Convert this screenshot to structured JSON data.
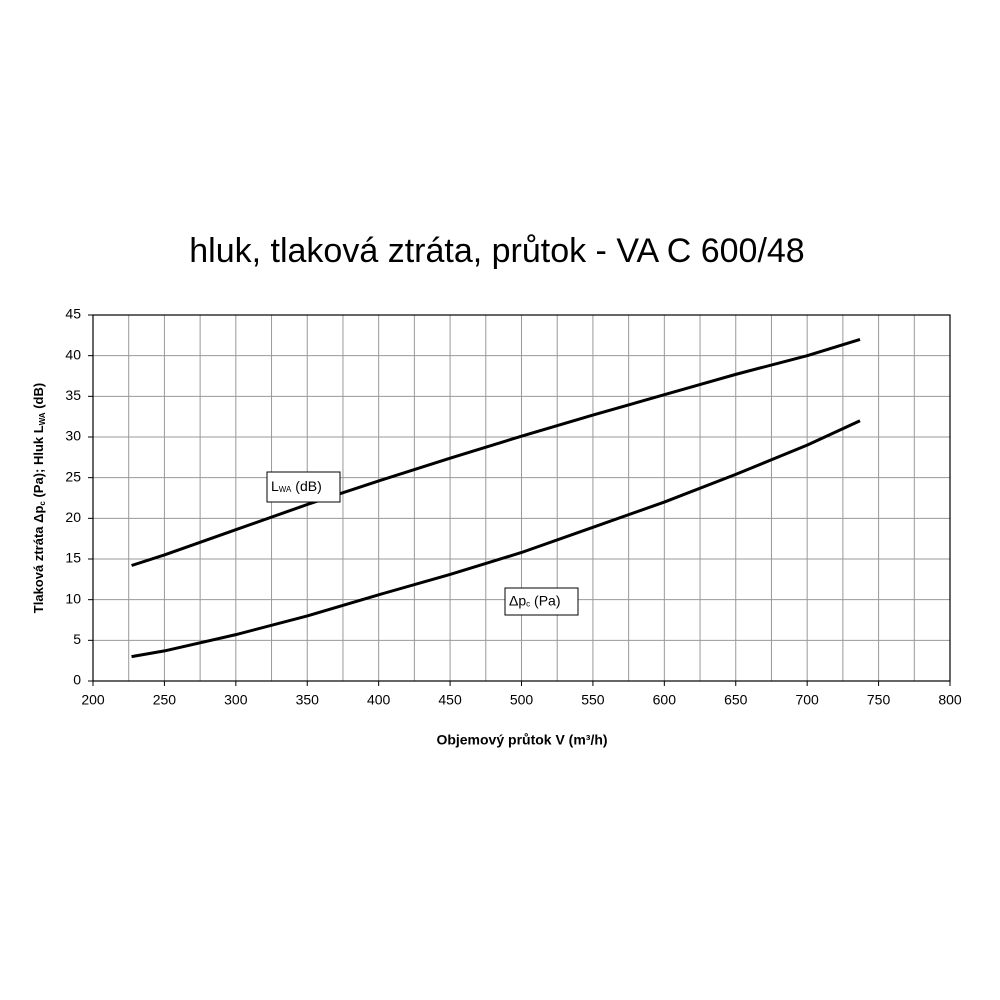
{
  "chart_data": {
    "type": "line",
    "title": "hluk, tlaková ztráta, průtok - VA C 600/48",
    "x_label": "Objemový  průtok V (m³/h)",
    "y_label_parts": [
      "Tlaková ztráta Δp",
      "c",
      " (Pa); Hluk L",
      "WA",
      " (dB)"
    ],
    "xlim": [
      200,
      800
    ],
    "xticks": [
      200,
      250,
      300,
      350,
      400,
      450,
      500,
      550,
      600,
      650,
      700,
      750,
      800
    ],
    "x_minor_grid": [
      225,
      275,
      325,
      375,
      425,
      475,
      525,
      575,
      625,
      675,
      725,
      775
    ],
    "ylim": [
      0,
      45
    ],
    "yticks": [
      0,
      5,
      10,
      15,
      20,
      25,
      30,
      35,
      40,
      45
    ],
    "grid": true,
    "series": [
      {
        "name_parts": [
          "L",
          "WA",
          " (dB)"
        ],
        "color": "#000000",
        "x": [
          227,
          250,
          300,
          350,
          400,
          450,
          500,
          550,
          600,
          650,
          700,
          737
        ],
        "values": [
          14.2,
          15.5,
          18.6,
          21.7,
          24.6,
          27.4,
          30.1,
          32.7,
          35.2,
          37.7,
          40.0,
          42.0
        ]
      },
      {
        "name_parts": [
          "Δp",
          "c",
          " (Pa)"
        ],
        "color": "#000000",
        "x": [
          227,
          250,
          300,
          350,
          400,
          450,
          500,
          550,
          600,
          650,
          700,
          737
        ],
        "values": [
          3.0,
          3.7,
          5.7,
          8.0,
          10.6,
          13.1,
          15.8,
          18.9,
          22.0,
          25.4,
          29.0,
          32.0
        ]
      }
    ]
  }
}
